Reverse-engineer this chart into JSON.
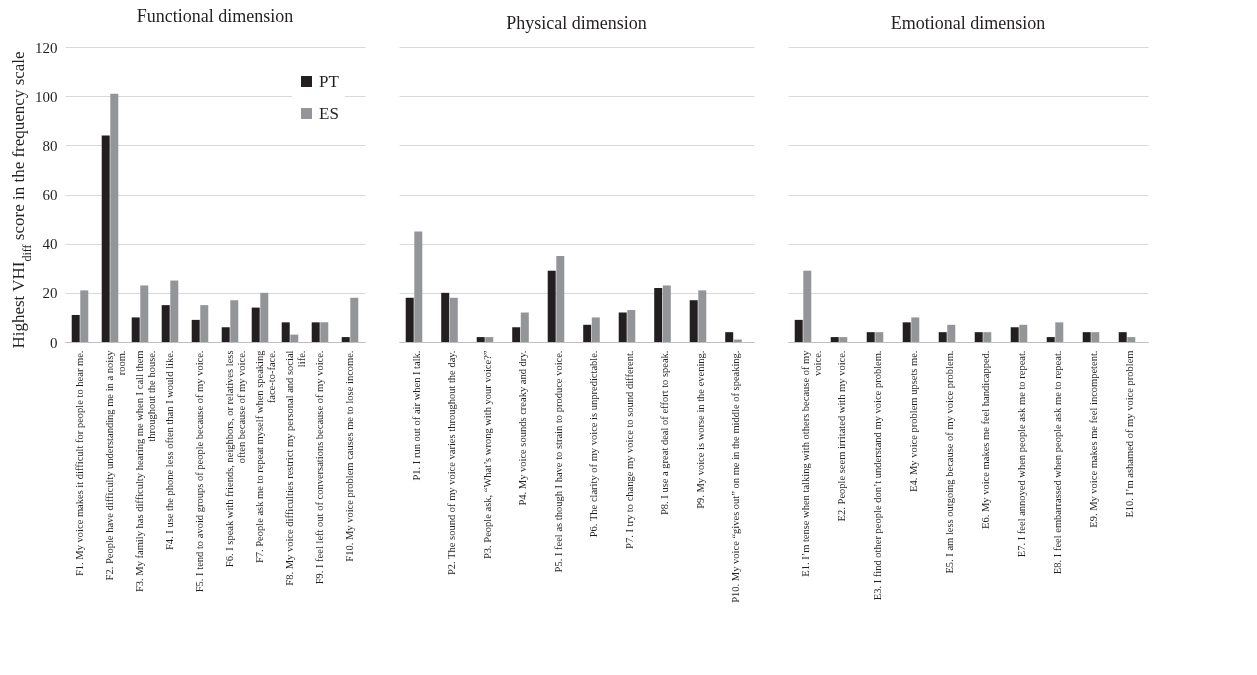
{
  "chart_data": [
    {
      "type": "bar",
      "title": "Functional dimension",
      "ylabel": "Highest VHI$_{diff}$  score in the frequency scale",
      "categories": [
        "F1. My voice makes it difficult for people to hear me.",
        "F2. People have difficulty understanding me in a noisy room.",
        "F3. My family has difficulty hearing me when I call them throughout the house.",
        "F4. I use the phone less often than I would like.",
        "F5. I tend to avoid groups of people because of my voice.",
        "F6. I speak with friends, neighbors, or relatives less often because of my voice.",
        "F7. People ask me to repeat myself when speaking face-to-face.",
        "F8. My voice difficulties restrict my personal and social life.",
        "F9. I feel left out of conversations because of my voice.",
        "F10. My voice problem causes me to lose income."
      ],
      "series": [
        {
          "name": "PT",
          "color": "#231f20",
          "values": [
            11,
            84,
            10,
            15,
            9,
            6,
            14,
            8,
            8,
            2
          ]
        },
        {
          "name": "ES",
          "color": "#939598",
          "values": [
            21,
            101,
            23,
            25,
            15,
            17,
            20,
            3,
            8,
            18
          ]
        }
      ],
      "ylim": [
        0,
        120
      ],
      "yticks": [
        0,
        20,
        40,
        60,
        80,
        100,
        120
      ],
      "grid": true,
      "legend": "top right"
    },
    {
      "type": "bar",
      "title": "Physical dimension",
      "categories": [
        "P1. I run out of air when I talk.",
        "P2. The sound of my voice varies throughout the day.",
        "P3. People ask, “What’s wrong with your voice?”",
        "P4. My voice sounds creaky and dry.",
        "P5. I feel as though I have to strain to produce voice.",
        "P6. The clarity of my voice is unpredictable.",
        "P7. I try to change my voice to sound different.",
        "P8. I use a great deal of effort to speak.",
        "P9. My voice is worse in the evening.",
        "P10. My voice “gives out” on me in the middle of speaking."
      ],
      "series": [
        {
          "color": "#231f20",
          "values": [
            18,
            20,
            2,
            6,
            29,
            7,
            12,
            22,
            17,
            4
          ]
        },
        {
          "color": "#939598",
          "values": [
            45,
            18,
            2,
            12,
            35,
            10,
            13,
            23,
            21,
            1
          ]
        }
      ],
      "ylim": [
        0,
        120
      ],
      "yticks": [
        0,
        20,
        40,
        60,
        80,
        100,
        120
      ],
      "grid": true,
      "tick_labels": "x"
    },
    {
      "type": "bar",
      "title": "Emotional dimension",
      "categories": [
        "E1. I’m tense when talking with others because of my voice.",
        "E2. People seem irritated with my voice.",
        "E3. I find other people don’t understand my voice problem.",
        "E4. My voice problem upsets me.",
        "E5. I am less outgoing because of my voice problem.",
        "E6. My voice makes me feel handicapped.",
        "E7. I feel annoyed when people ask me to repeat.",
        "E8. I feel embarrassed when people ask me to repeat.",
        "E9. My voice makes me feel incompetent.",
        "E10. I’m ashamed of my voice problem"
      ],
      "series": [
        {
          "color": "#231f20",
          "values": [
            9,
            2,
            4,
            8,
            4,
            4,
            6,
            2,
            4,
            4
          ]
        },
        {
          "color": "#939598",
          "values": [
            29,
            2,
            4,
            10,
            7,
            4,
            7,
            8,
            4,
            2
          ]
        }
      ],
      "ylim": [
        0,
        120
      ],
      "yticks": [
        0,
        20,
        40,
        60,
        80,
        100,
        120
      ],
      "grid": true,
      "tick_labels": "x"
    }
  ]
}
